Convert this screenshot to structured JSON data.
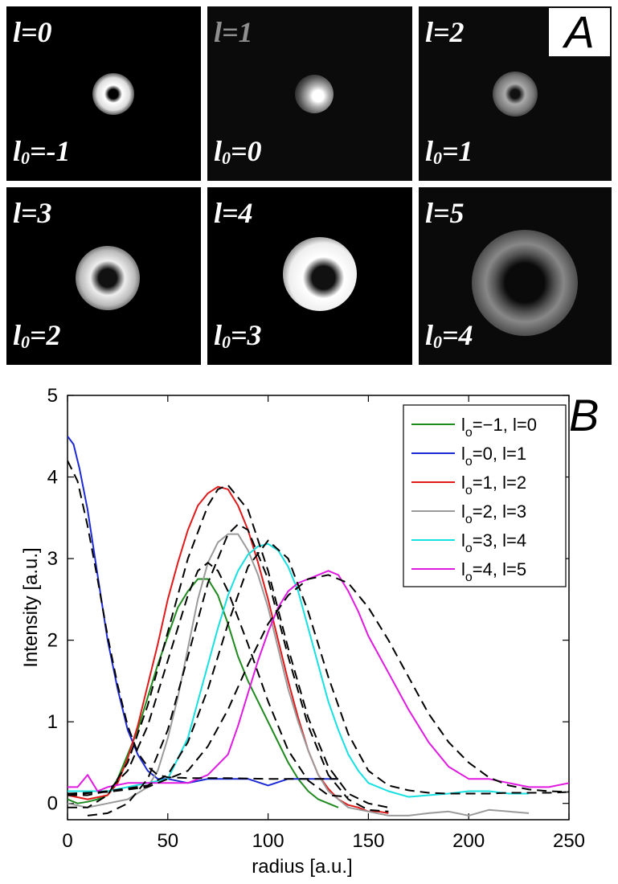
{
  "panel_a": {
    "letter": "A",
    "tiles": [
      {
        "l": "l=0",
        "l0_prefix": "l",
        "l0_sub": "0",
        "l0_value": "=-1",
        "top_dim": false,
        "beam": "ring-small"
      },
      {
        "l": "l=1",
        "l0_prefix": "l",
        "l0_sub": "0",
        "l0_value": "=0",
        "top_dim": true,
        "beam": "spot"
      },
      {
        "l": "l=2",
        "l0_prefix": "l",
        "l0_sub": "0",
        "l0_value": "=1",
        "top_dim": false,
        "beam": "ring-dim"
      },
      {
        "l": "l=3",
        "l0_prefix": "l",
        "l0_sub": "0",
        "l0_value": "=2",
        "top_dim": false,
        "beam": "ring-medium"
      },
      {
        "l": "l=4",
        "l0_prefix": "l",
        "l0_sub": "0",
        "l0_value": "=3",
        "top_dim": false,
        "beam": "ring-bright"
      },
      {
        "l": "l=5",
        "l0_prefix": "l",
        "l0_sub": "0",
        "l0_value": "=4",
        "top_dim": false,
        "beam": "ring-large"
      }
    ]
  },
  "chart_data": {
    "type": "line",
    "letter": "B",
    "xlabel": "radius [a.u.]",
    "ylabel": "Intensity [a.u.]",
    "xlim": [
      0,
      250
    ],
    "ylim": [
      -0.2,
      5
    ],
    "xticks": [
      "0",
      "50",
      "100",
      "150",
      "200",
      "250"
    ],
    "yticks": [
      "0",
      "1",
      "2",
      "3",
      "4",
      "5"
    ],
    "legend_position": "top-right",
    "series": [
      {
        "name": "l",
        "sub": "o",
        "rest": "=−1, l=0",
        "color": "#1f8a1f",
        "x": [
          0,
          5,
          10,
          15,
          20,
          25,
          30,
          35,
          40,
          45,
          50,
          55,
          60,
          65,
          70,
          75,
          80,
          85,
          90,
          95,
          100,
          105,
          110,
          115,
          120,
          125,
          130,
          135
        ],
        "y": [
          0.05,
          0.0,
          0.02,
          0.05,
          0.1,
          0.3,
          0.6,
          0.9,
          1.3,
          1.7,
          2.05,
          2.4,
          2.6,
          2.75,
          2.75,
          2.55,
          2.2,
          1.8,
          1.5,
          1.25,
          1.0,
          0.75,
          0.5,
          0.3,
          0.15,
          0.05,
          0.0,
          -0.05
        ]
      },
      {
        "name": "l",
        "sub": "o",
        "rest": "=0,  l=1",
        "color": "#1c2ad6",
        "x": [
          0,
          3,
          6,
          10,
          15,
          20,
          25,
          30,
          35,
          40,
          45,
          50,
          60,
          70,
          80,
          90,
          100,
          110,
          120,
          130,
          135
        ],
        "y": [
          4.5,
          4.4,
          4.1,
          3.6,
          2.8,
          2.0,
          1.4,
          0.9,
          0.6,
          0.4,
          0.3,
          0.3,
          0.25,
          0.3,
          0.3,
          0.3,
          0.22,
          0.3,
          0.3,
          0.3,
          0.3
        ]
      },
      {
        "name": "l",
        "sub": "o",
        "rest": "=1,  l=2",
        "color": "#e01a1a",
        "x": [
          0,
          10,
          20,
          25,
          30,
          35,
          40,
          45,
          50,
          55,
          60,
          65,
          70,
          75,
          80,
          85,
          90,
          95,
          100,
          105,
          110,
          115,
          120,
          125,
          130,
          135,
          140,
          145,
          150,
          155,
          160
        ],
        "y": [
          0.1,
          0.05,
          0.1,
          0.25,
          0.55,
          0.95,
          1.45,
          1.95,
          2.5,
          2.95,
          3.35,
          3.65,
          3.8,
          3.88,
          3.85,
          3.65,
          3.35,
          2.95,
          2.5,
          2.0,
          1.5,
          1.05,
          0.65,
          0.35,
          0.18,
          0.05,
          -0.02,
          -0.05,
          -0.1,
          -0.1,
          -0.12
        ]
      },
      {
        "name": "l",
        "sub": "o",
        "rest": "=2,  l=3",
        "color": "#9a9a9a",
        "x": [
          0,
          10,
          20,
          30,
          40,
          45,
          50,
          55,
          60,
          65,
          70,
          75,
          80,
          85,
          90,
          95,
          100,
          105,
          110,
          115,
          120,
          125,
          130,
          135,
          140,
          150,
          160,
          170,
          180,
          190,
          200,
          210,
          220,
          230
        ],
        "y": [
          0.0,
          -0.05,
          0.0,
          0.05,
          0.2,
          0.4,
          0.8,
          1.3,
          1.9,
          2.5,
          2.95,
          3.2,
          3.3,
          3.3,
          3.1,
          2.8,
          2.4,
          1.9,
          1.4,
          1.0,
          0.65,
          0.35,
          0.15,
          0.05,
          -0.05,
          -0.1,
          -0.15,
          -0.15,
          -0.12,
          -0.1,
          -0.15,
          -0.08,
          -0.1,
          -0.12
        ]
      },
      {
        "name": "l",
        "sub": "o",
        "rest": "=3,  l=4",
        "color": "#16e0e0",
        "x": [
          0,
          10,
          20,
          30,
          40,
          50,
          60,
          65,
          70,
          75,
          80,
          85,
          90,
          95,
          100,
          105,
          110,
          115,
          120,
          125,
          130,
          135,
          140,
          145,
          150,
          160,
          170,
          180,
          190,
          200,
          210,
          220,
          230
        ],
        "y": [
          0.15,
          0.15,
          0.15,
          0.2,
          0.25,
          0.3,
          0.8,
          1.25,
          1.7,
          2.15,
          2.55,
          2.85,
          3.05,
          3.15,
          3.18,
          3.1,
          2.9,
          2.6,
          2.15,
          1.7,
          1.25,
          0.9,
          0.6,
          0.4,
          0.25,
          0.15,
          0.08,
          0.1,
          0.12,
          0.15,
          0.15,
          0.12,
          0.12
        ]
      },
      {
        "name": "l",
        "sub": "o",
        "rest": "=4,  l=5",
        "color": "#e01ae0",
        "x": [
          0,
          5,
          10,
          15,
          20,
          30,
          40,
          50,
          60,
          70,
          80,
          85,
          90,
          95,
          100,
          105,
          110,
          115,
          120,
          125,
          130,
          135,
          140,
          145,
          150,
          160,
          170,
          180,
          190,
          200,
          210,
          220,
          230,
          240,
          250
        ],
        "y": [
          0.2,
          0.2,
          0.35,
          0.15,
          0.2,
          0.25,
          0.25,
          0.25,
          0.25,
          0.35,
          0.6,
          0.95,
          1.35,
          1.75,
          2.1,
          2.4,
          2.6,
          2.7,
          2.75,
          2.8,
          2.85,
          2.8,
          2.6,
          2.35,
          2.05,
          1.6,
          1.15,
          0.75,
          0.45,
          0.3,
          0.3,
          0.25,
          0.2,
          0.2,
          0.25
        ]
      }
    ],
    "fits": [
      {
        "x": [
          0,
          5,
          10,
          15,
          20,
          25,
          30,
          35,
          40,
          45,
          50,
          60,
          80,
          100,
          120,
          135
        ],
        "y": [
          4.2,
          3.95,
          3.4,
          2.75,
          2.05,
          1.45,
          0.95,
          0.62,
          0.45,
          0.35,
          0.32,
          0.31,
          0.31,
          0.3,
          0.3,
          0.3
        ]
      },
      {
        "x": [
          0,
          10,
          20,
          30,
          40,
          50,
          60,
          65,
          70,
          75,
          80,
          90,
          100,
          110,
          120,
          130,
          140
        ],
        "y": [
          0.1,
          0.1,
          0.15,
          0.4,
          0.95,
          1.75,
          2.55,
          2.85,
          2.95,
          2.85,
          2.6,
          1.95,
          1.25,
          0.65,
          0.28,
          0.1,
          0.08
        ]
      },
      {
        "x": [
          0,
          10,
          20,
          30,
          40,
          50,
          60,
          70,
          75,
          80,
          90,
          100,
          110,
          120,
          130,
          140,
          150,
          160
        ],
        "y": [
          -0.05,
          -0.05,
          0.1,
          0.5,
          1.2,
          2.1,
          3.0,
          3.65,
          3.85,
          3.9,
          3.6,
          2.85,
          1.9,
          1.05,
          0.45,
          0.12,
          0.0,
          -0.05
        ]
      },
      {
        "x": [
          10,
          20,
          30,
          40,
          50,
          60,
          70,
          80,
          85,
          90,
          100,
          110,
          120,
          130,
          140,
          150,
          160
        ],
        "y": [
          -0.15,
          -0.12,
          0.0,
          0.3,
          0.9,
          1.8,
          2.7,
          3.3,
          3.42,
          3.35,
          2.75,
          1.8,
          0.95,
          0.35,
          0.05,
          -0.08,
          -0.1
        ]
      },
      {
        "x": [
          0,
          20,
          40,
          50,
          60,
          70,
          80,
          90,
          100,
          110,
          120,
          130,
          140,
          150,
          160,
          170,
          180,
          190,
          200,
          210,
          220,
          230,
          240,
          250
        ],
        "y": [
          0.1,
          0.15,
          0.22,
          0.35,
          0.75,
          1.4,
          2.2,
          2.9,
          3.22,
          3.0,
          2.35,
          1.55,
          0.85,
          0.4,
          0.22,
          0.16,
          0.13,
          0.12,
          0.12,
          0.12,
          0.13,
          0.13,
          0.13,
          0.14
        ]
      },
      {
        "x": [
          0,
          20,
          40,
          60,
          70,
          80,
          90,
          100,
          110,
          120,
          130,
          140,
          150,
          160,
          170,
          180,
          190,
          200,
          210,
          220,
          230,
          240,
          250
        ],
        "y": [
          0.12,
          0.14,
          0.2,
          0.4,
          0.7,
          1.15,
          1.7,
          2.2,
          2.55,
          2.75,
          2.8,
          2.7,
          2.4,
          2.0,
          1.55,
          1.1,
          0.75,
          0.5,
          0.32,
          0.22,
          0.17,
          0.15,
          0.14
        ]
      }
    ]
  }
}
